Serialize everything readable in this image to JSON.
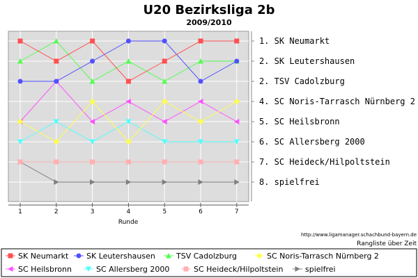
{
  "chart_data": {
    "type": "line",
    "title": "U20 Bezirksliga 2b",
    "subtitle": "2009/2010",
    "xlabel": "Runde",
    "x": [
      1,
      2,
      3,
      4,
      5,
      6,
      7
    ],
    "ylim": [
      1,
      8
    ],
    "y_inverted": true,
    "rank_labels": [
      "1. SK Neumarkt",
      "2. SK Leutershausen",
      "2. TSV Cadolzburg",
      "4. SC Noris-Tarrasch Nürnberg 2",
      "5. SC Heilsbronn",
      "6. SC Allersberg 2000",
      "7. SC Heideck/Hilpoltstein",
      "8. spielfrei"
    ],
    "series": [
      {
        "name": "SK Neumarkt",
        "color": "#ff5050",
        "marker": "square",
        "values": [
          1,
          2,
          1,
          3,
          2,
          1,
          1
        ]
      },
      {
        "name": "SK Leutershausen",
        "color": "#5050ff",
        "marker": "circle",
        "values": [
          3,
          3,
          2,
          1,
          1,
          3,
          2
        ]
      },
      {
        "name": "TSV Cadolzburg",
        "color": "#50ff50",
        "marker": "triangle-up",
        "values": [
          2,
          1,
          3,
          2,
          3,
          2,
          2
        ]
      },
      {
        "name": "SC Noris-Tarrasch Nürnberg 2",
        "color": "#ffff50",
        "marker": "diamond",
        "values": [
          5,
          6,
          4,
          6,
          4,
          5,
          4
        ]
      },
      {
        "name": "SC Heilsbronn",
        "color": "#ff50ff",
        "marker": "triangle-left",
        "values": [
          5,
          3,
          5,
          4,
          5,
          4,
          5
        ]
      },
      {
        "name": "SC Allersberg 2000",
        "color": "#50ffff",
        "marker": "triangle-down",
        "values": [
          6,
          5,
          6,
          5,
          6,
          6,
          6
        ]
      },
      {
        "name": "SC Heideck/Hilpoltstein",
        "color": "#ffb0b0",
        "marker": "square",
        "values": [
          7,
          7,
          7,
          7,
          7,
          7,
          7
        ]
      },
      {
        "name": "spielfrei",
        "color": "#808080",
        "marker": "triangle-right",
        "values": [
          7,
          8,
          8,
          8,
          8,
          8,
          8
        ]
      }
    ],
    "legend_position": "bottom",
    "grid": true
  },
  "footer": {
    "url": "http://www.ligamanager.schachbund-bayern.de",
    "caption": "Rangliste über Zeit"
  }
}
